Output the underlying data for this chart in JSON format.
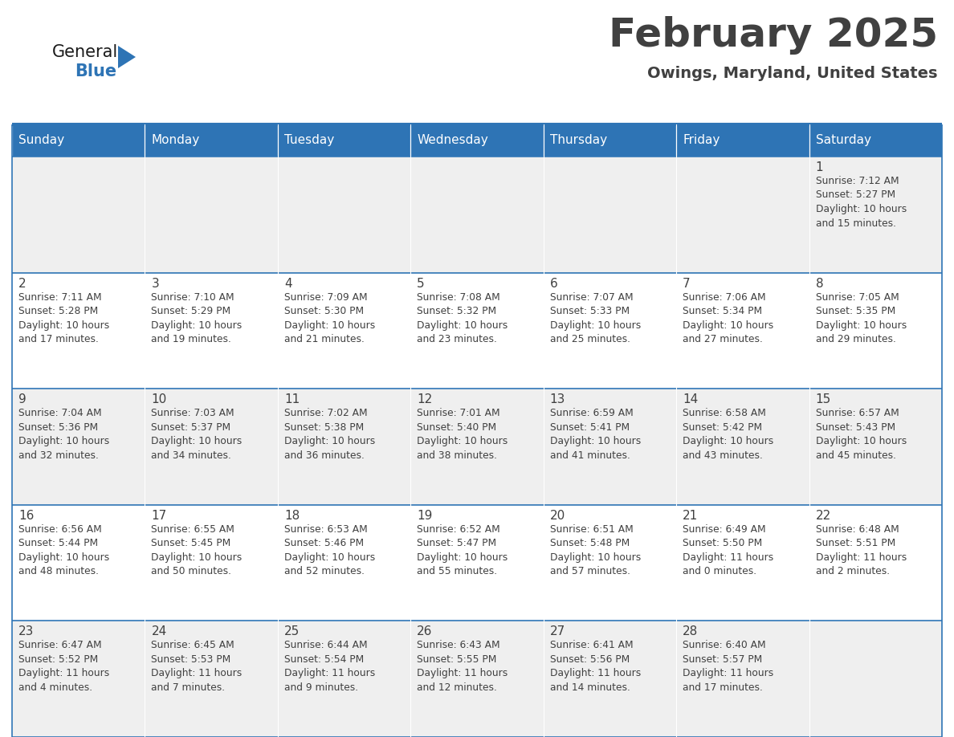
{
  "title": "February 2025",
  "subtitle": "Owings, Maryland, United States",
  "header_bg": "#2E74B5",
  "header_text": "#FFFFFF",
  "day_names": [
    "Sunday",
    "Monday",
    "Tuesday",
    "Wednesday",
    "Thursday",
    "Friday",
    "Saturday"
  ],
  "row_bg_light": "#EFEFEF",
  "row_bg_white": "#FFFFFF",
  "border_color": "#2E74B5",
  "text_color": "#404040",
  "day_num_color": "#404040",
  "logo_general_color": "#1A1A1A",
  "logo_blue_color": "#2E74B5",
  "calendar": [
    [
      {
        "day": null,
        "sunrise": null,
        "sunset": null,
        "daylight": null
      },
      {
        "day": null,
        "sunrise": null,
        "sunset": null,
        "daylight": null
      },
      {
        "day": null,
        "sunrise": null,
        "sunset": null,
        "daylight": null
      },
      {
        "day": null,
        "sunrise": null,
        "sunset": null,
        "daylight": null
      },
      {
        "day": null,
        "sunrise": null,
        "sunset": null,
        "daylight": null
      },
      {
        "day": null,
        "sunrise": null,
        "sunset": null,
        "daylight": null
      },
      {
        "day": 1,
        "sunrise": "7:12 AM",
        "sunset": "5:27 PM",
        "daylight": "10 hours\nand 15 minutes."
      }
    ],
    [
      {
        "day": 2,
        "sunrise": "7:11 AM",
        "sunset": "5:28 PM",
        "daylight": "10 hours\nand 17 minutes."
      },
      {
        "day": 3,
        "sunrise": "7:10 AM",
        "sunset": "5:29 PM",
        "daylight": "10 hours\nand 19 minutes."
      },
      {
        "day": 4,
        "sunrise": "7:09 AM",
        "sunset": "5:30 PM",
        "daylight": "10 hours\nand 21 minutes."
      },
      {
        "day": 5,
        "sunrise": "7:08 AM",
        "sunset": "5:32 PM",
        "daylight": "10 hours\nand 23 minutes."
      },
      {
        "day": 6,
        "sunrise": "7:07 AM",
        "sunset": "5:33 PM",
        "daylight": "10 hours\nand 25 minutes."
      },
      {
        "day": 7,
        "sunrise": "7:06 AM",
        "sunset": "5:34 PM",
        "daylight": "10 hours\nand 27 minutes."
      },
      {
        "day": 8,
        "sunrise": "7:05 AM",
        "sunset": "5:35 PM",
        "daylight": "10 hours\nand 29 minutes."
      }
    ],
    [
      {
        "day": 9,
        "sunrise": "7:04 AM",
        "sunset": "5:36 PM",
        "daylight": "10 hours\nand 32 minutes."
      },
      {
        "day": 10,
        "sunrise": "7:03 AM",
        "sunset": "5:37 PM",
        "daylight": "10 hours\nand 34 minutes."
      },
      {
        "day": 11,
        "sunrise": "7:02 AM",
        "sunset": "5:38 PM",
        "daylight": "10 hours\nand 36 minutes."
      },
      {
        "day": 12,
        "sunrise": "7:01 AM",
        "sunset": "5:40 PM",
        "daylight": "10 hours\nand 38 minutes."
      },
      {
        "day": 13,
        "sunrise": "6:59 AM",
        "sunset": "5:41 PM",
        "daylight": "10 hours\nand 41 minutes."
      },
      {
        "day": 14,
        "sunrise": "6:58 AM",
        "sunset": "5:42 PM",
        "daylight": "10 hours\nand 43 minutes."
      },
      {
        "day": 15,
        "sunrise": "6:57 AM",
        "sunset": "5:43 PM",
        "daylight": "10 hours\nand 45 minutes."
      }
    ],
    [
      {
        "day": 16,
        "sunrise": "6:56 AM",
        "sunset": "5:44 PM",
        "daylight": "10 hours\nand 48 minutes."
      },
      {
        "day": 17,
        "sunrise": "6:55 AM",
        "sunset": "5:45 PM",
        "daylight": "10 hours\nand 50 minutes."
      },
      {
        "day": 18,
        "sunrise": "6:53 AM",
        "sunset": "5:46 PM",
        "daylight": "10 hours\nand 52 minutes."
      },
      {
        "day": 19,
        "sunrise": "6:52 AM",
        "sunset": "5:47 PM",
        "daylight": "10 hours\nand 55 minutes."
      },
      {
        "day": 20,
        "sunrise": "6:51 AM",
        "sunset": "5:48 PM",
        "daylight": "10 hours\nand 57 minutes."
      },
      {
        "day": 21,
        "sunrise": "6:49 AM",
        "sunset": "5:50 PM",
        "daylight": "11 hours\nand 0 minutes."
      },
      {
        "day": 22,
        "sunrise": "6:48 AM",
        "sunset": "5:51 PM",
        "daylight": "11 hours\nand 2 minutes."
      }
    ],
    [
      {
        "day": 23,
        "sunrise": "6:47 AM",
        "sunset": "5:52 PM",
        "daylight": "11 hours\nand 4 minutes."
      },
      {
        "day": 24,
        "sunrise": "6:45 AM",
        "sunset": "5:53 PM",
        "daylight": "11 hours\nand 7 minutes."
      },
      {
        "day": 25,
        "sunrise": "6:44 AM",
        "sunset": "5:54 PM",
        "daylight": "11 hours\nand 9 minutes."
      },
      {
        "day": 26,
        "sunrise": "6:43 AM",
        "sunset": "5:55 PM",
        "daylight": "11 hours\nand 12 minutes."
      },
      {
        "day": 27,
        "sunrise": "6:41 AM",
        "sunset": "5:56 PM",
        "daylight": "11 hours\nand 14 minutes."
      },
      {
        "day": 28,
        "sunrise": "6:40 AM",
        "sunset": "5:57 PM",
        "daylight": "11 hours\nand 17 minutes."
      },
      {
        "day": null,
        "sunrise": null,
        "sunset": null,
        "daylight": null
      }
    ]
  ],
  "fig_width": 11.88,
  "fig_height": 9.18,
  "dpi": 100
}
